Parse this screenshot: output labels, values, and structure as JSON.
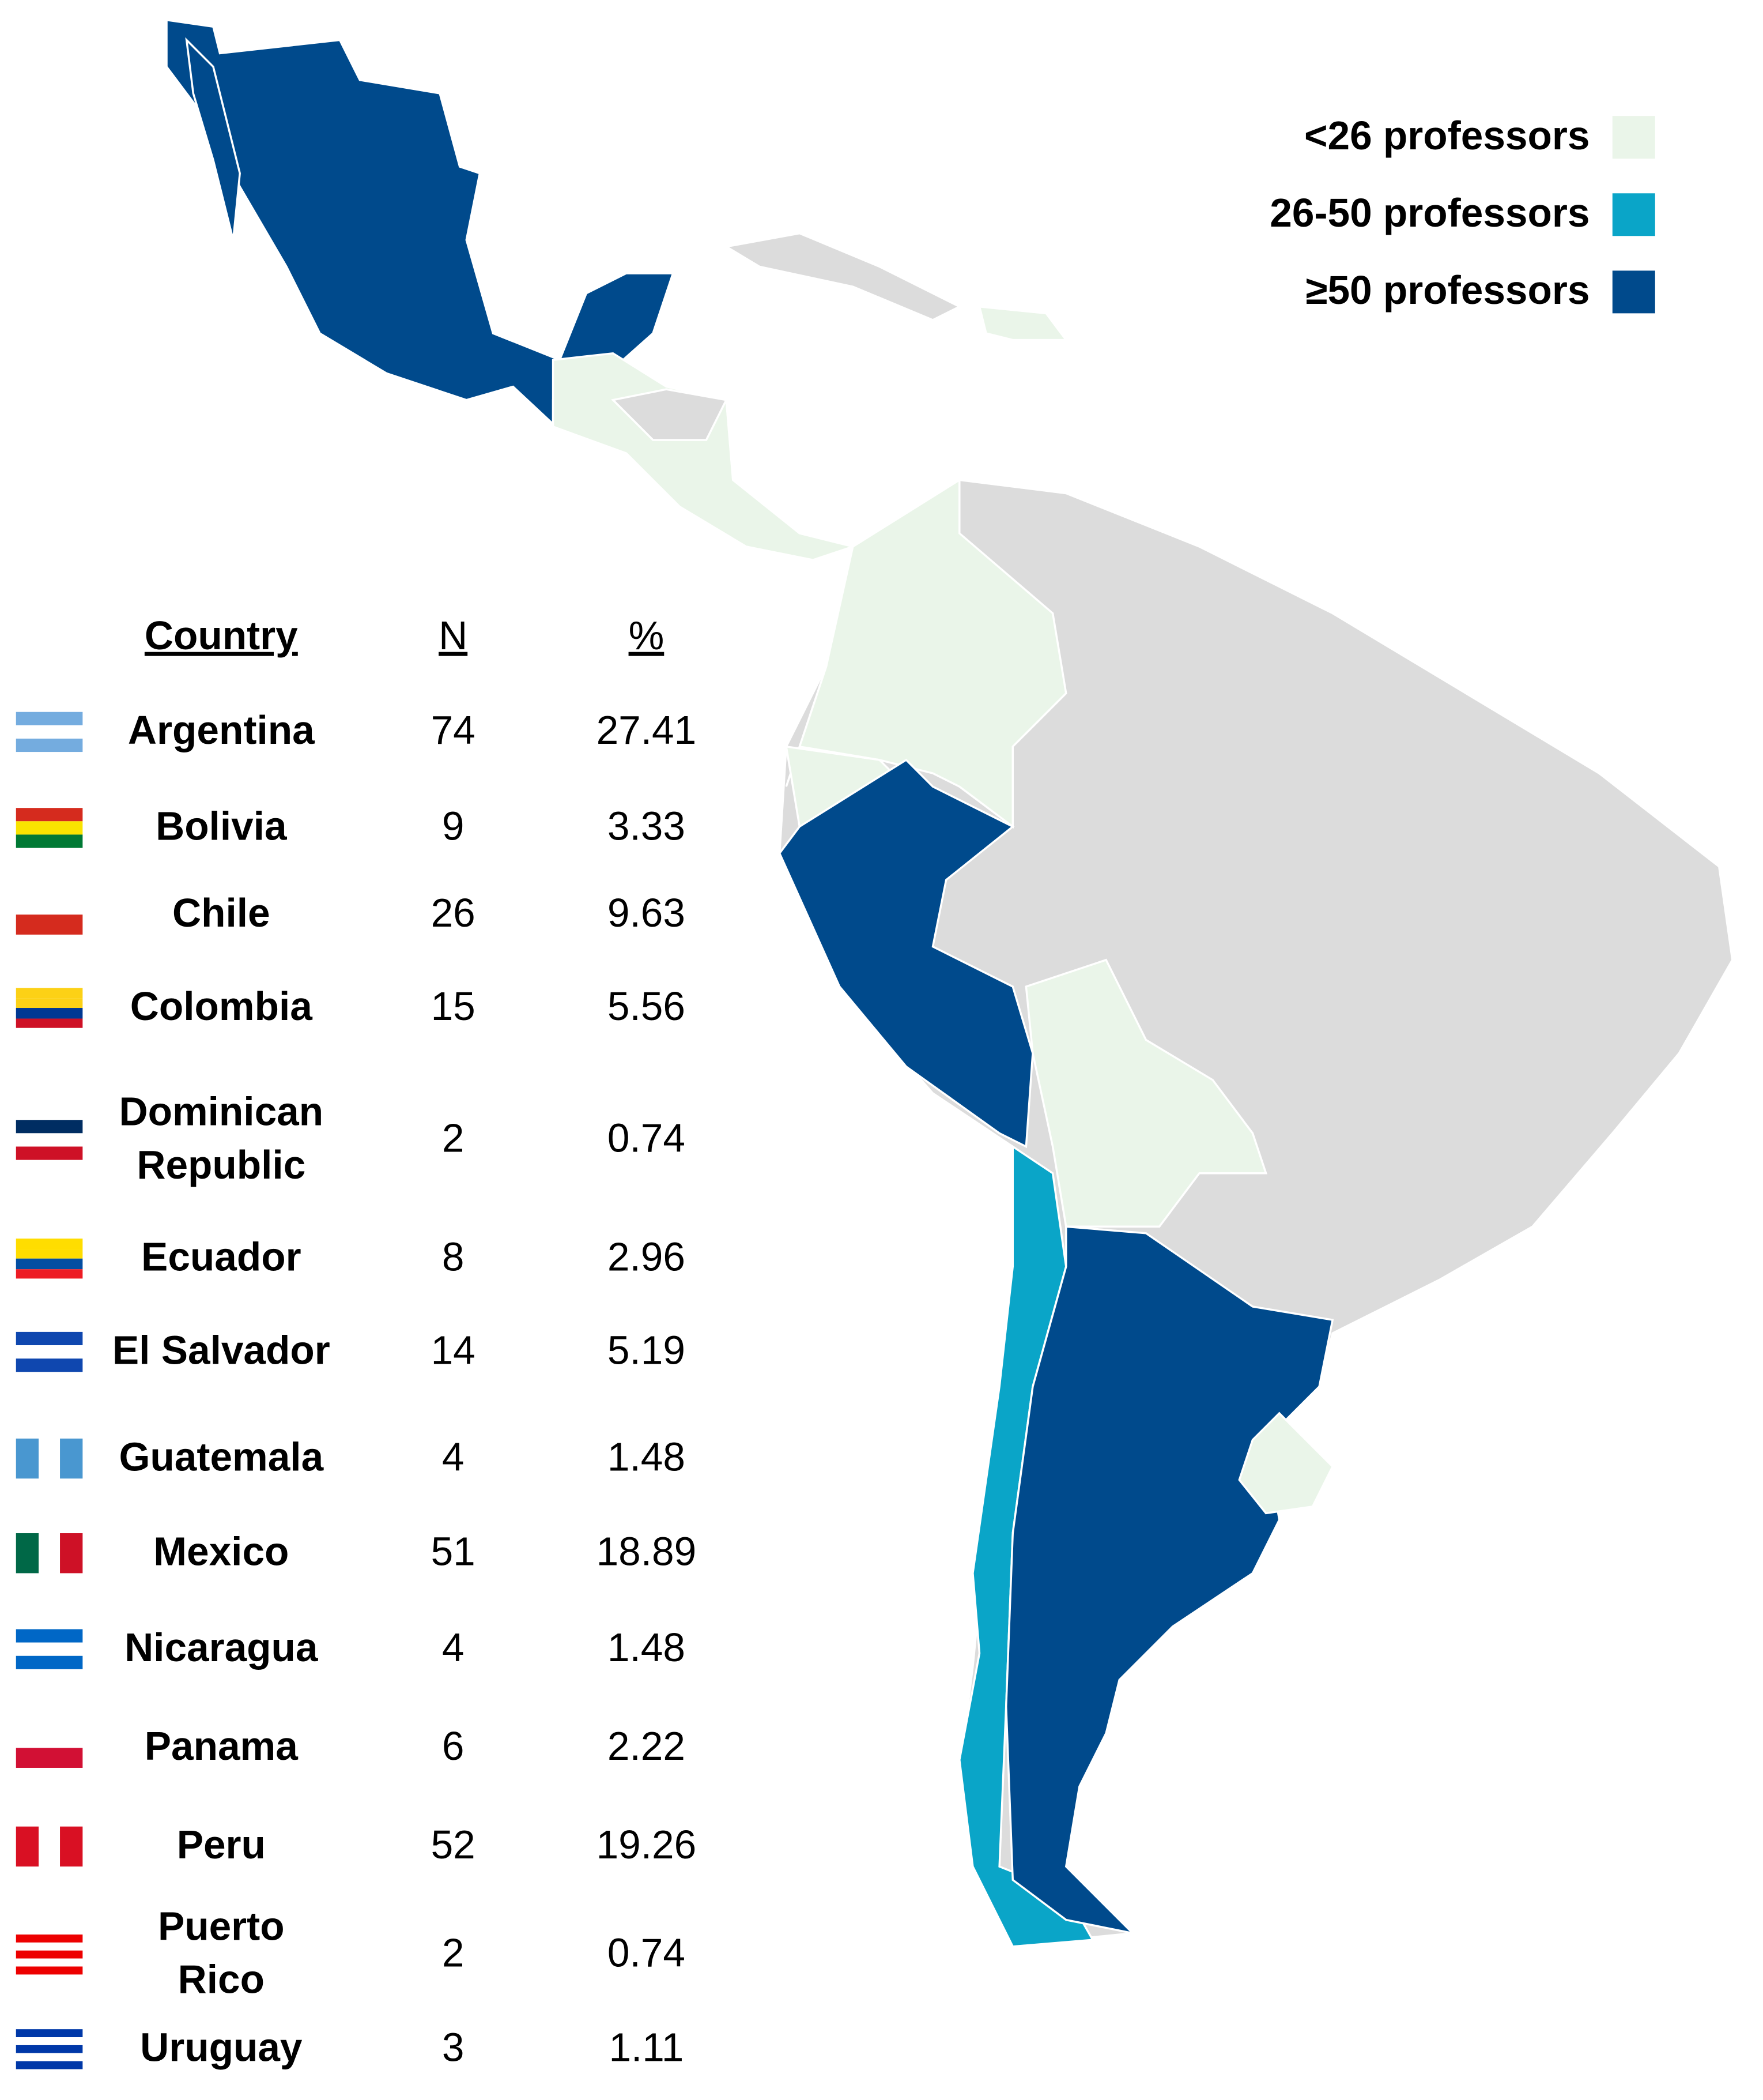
{
  "legend": [
    {
      "label": "<26 professors",
      "color": "#eaf5e9"
    },
    {
      "label": "26-50 professors",
      "color": "#0aa5c8"
    },
    {
      "label": "≥50 professors",
      "color": "#004a8c"
    }
  ],
  "table": {
    "headers": [
      "Country",
      "N",
      "%"
    ],
    "rows": [
      [
        "Argentina",
        74,
        27.41
      ],
      [
        "Bolivia",
        9,
        3.33
      ],
      [
        "Chile",
        26,
        9.63
      ],
      [
        "Colombia",
        15,
        5.56
      ],
      [
        "Dominican Republic",
        2,
        0.74
      ],
      [
        "Ecuador",
        8,
        2.96
      ],
      [
        "El Salvador",
        14,
        5.19
      ],
      [
        "Guatemala",
        4,
        1.48
      ],
      [
        "Mexico",
        51,
        18.89
      ],
      [
        "Nicaragua",
        4,
        1.48
      ],
      [
        "Panama",
        6,
        2.22
      ],
      [
        "Peru",
        52,
        19.26
      ],
      [
        "Puerto Rico",
        2,
        0.74
      ],
      [
        "Uruguay",
        3,
        1.11
      ]
    ]
  }
}
